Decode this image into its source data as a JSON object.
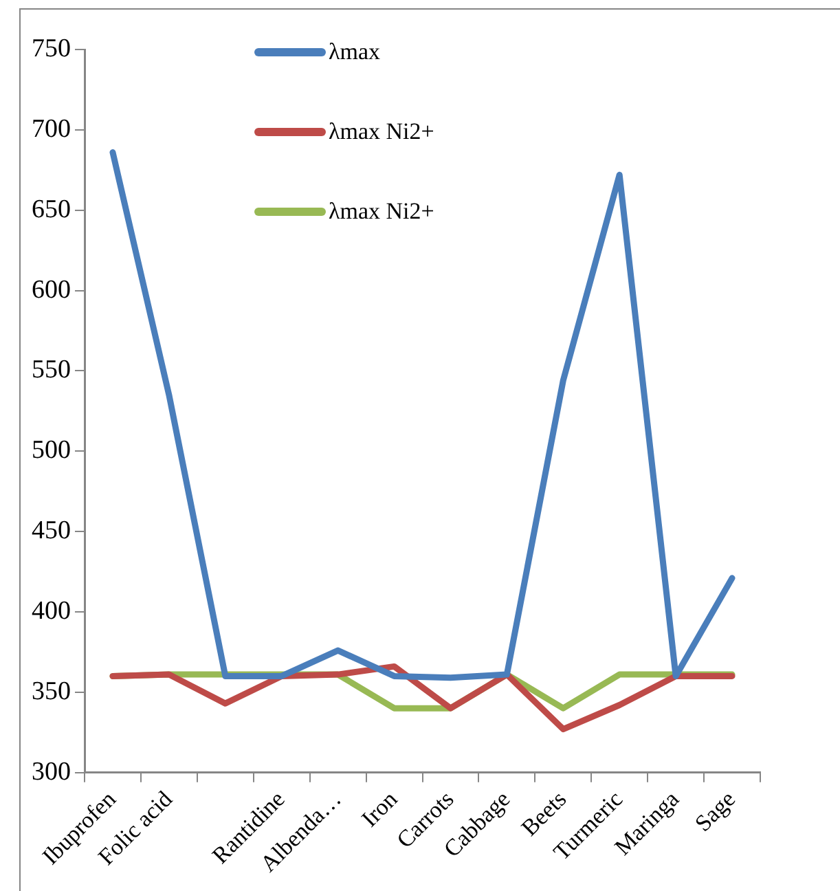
{
  "chart_data": {
    "type": "line",
    "categories": [
      "Ibuprofen",
      "Folic acid",
      null,
      "Rantidine",
      "Albenda…",
      "Iron",
      "Carrots",
      "Cabbage",
      "Beets",
      "Turmeric",
      "Maringa",
      "Sage"
    ],
    "series": [
      {
        "name": "λmax",
        "color": "#4a7ebb",
        "values": [
          686,
          535,
          360,
          360,
          376,
          360,
          359,
          361,
          544,
          672,
          360,
          421
        ]
      },
      {
        "name": "λmax Ni2+",
        "color": "#be4b48",
        "values": [
          360,
          361,
          343,
          360,
          361,
          366,
          340,
          361,
          327,
          342,
          360,
          360
        ]
      },
      {
        "name": "λmax Ni2+",
        "color": "#98b954",
        "values": [
          360,
          361,
          361,
          361,
          361,
          340,
          340,
          361,
          340,
          361,
          361,
          361
        ]
      }
    ],
    "ylim": [
      300,
      750
    ],
    "yticks": [
      300,
      350,
      400,
      450,
      500,
      550,
      600,
      650,
      700,
      750
    ],
    "grid": false,
    "legend": "top left",
    "marker": "none",
    "line_style": "solid"
  }
}
